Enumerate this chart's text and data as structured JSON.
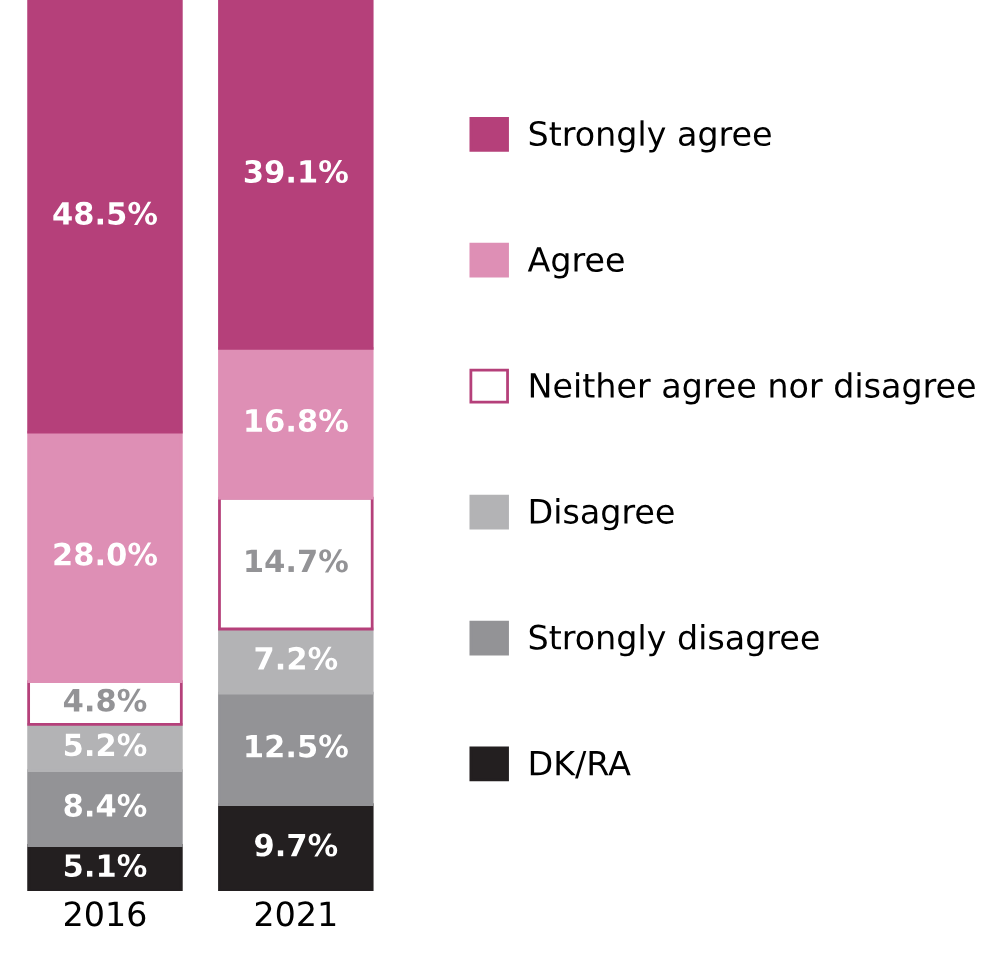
{
  "chart_data": {
    "type": "bar",
    "stacked": true,
    "categories": [
      "2016",
      "2021"
    ],
    "legend": "right",
    "tick_labels": "x",
    "grid": false,
    "marker": "square",
    "series": [
      {
        "name": "DK/RA",
        "color": "#231f20",
        "values": [
          5.1,
          9.7
        ],
        "value_labels": [
          "5.1%",
          "9.7%"
        ]
      },
      {
        "name": "Strongly disagree",
        "color": "#939396",
        "values": [
          8.4,
          12.5
        ],
        "value_labels": [
          "8.4%",
          "12.5%"
        ]
      },
      {
        "name": "Disagree",
        "color": "#b3b3b5",
        "values": [
          5.2,
          7.2
        ],
        "value_labels": [
          "5.2%",
          "7.2%"
        ]
      },
      {
        "name": "Neither agree nor disagree",
        "color": "#ffffff",
        "values": [
          4.8,
          14.7
        ],
        "value_labels": [
          "4.8%",
          "14.7%"
        ]
      },
      {
        "name": "Agree",
        "color": "#de8fb5",
        "values": [
          28.0,
          16.8
        ],
        "value_labels": [
          "28.0%",
          "16.8%"
        ]
      },
      {
        "name": "Strongly agree",
        "color": "#b5407a",
        "values": [
          48.5,
          39.1
        ],
        "value_labels": [
          "48.5%",
          "39.1%"
        ]
      }
    ]
  }
}
